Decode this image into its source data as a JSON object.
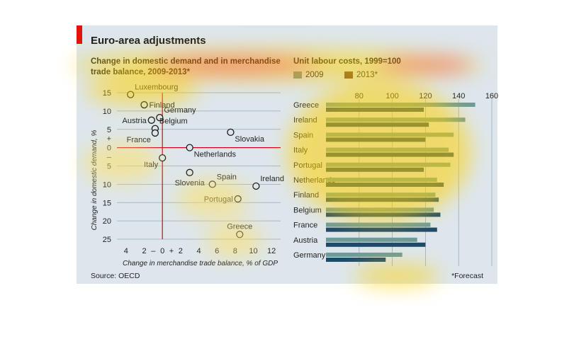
{
  "figure": {
    "title": "Euro-area adjustments",
    "source": "Source: OECD",
    "footnote": "*Forecast"
  },
  "chart_data": [
    {
      "type": "scatter",
      "title": "Change in domestic demand and in merchandise trade balance, 2009-2013*",
      "xlabel": "Change in merchandise trade balance, % of GDP",
      "ylabel": "Change in domestic demand, %",
      "xlim": [
        -5,
        13
      ],
      "ylim": [
        -25,
        15
      ],
      "xticks": [
        {
          "v": -4,
          "label": "4"
        },
        {
          "v": -2,
          "label": "2"
        },
        {
          "v": -1,
          "label": "–"
        },
        {
          "v": 0,
          "label": "0"
        },
        {
          "v": 1,
          "label": "+"
        },
        {
          "v": 2,
          "label": "2"
        },
        {
          "v": 4,
          "label": "4"
        },
        {
          "v": 6,
          "label": "6"
        },
        {
          "v": 8,
          "label": "8"
        },
        {
          "v": 10,
          "label": "10"
        },
        {
          "v": 12,
          "label": "12"
        }
      ],
      "yticks": [
        {
          "v": 15,
          "label": "15"
        },
        {
          "v": 10,
          "label": "10"
        },
        {
          "v": 5,
          "label": "5"
        },
        {
          "v": 2.5,
          "label": "+"
        },
        {
          "v": 0,
          "label": "0"
        },
        {
          "v": -2.5,
          "label": "–"
        },
        {
          "v": -5,
          "label": "5"
        },
        {
          "v": -10,
          "label": "10"
        },
        {
          "v": -15,
          "label": "15"
        },
        {
          "v": -20,
          "label": "20"
        },
        {
          "v": -25,
          "label": "25"
        }
      ],
      "grid": true,
      "points": [
        {
          "name": "Luxembourg",
          "x": -3.5,
          "y": 14.5,
          "pos": "ne"
        },
        {
          "name": "Finland",
          "x": -2.0,
          "y": 11.7,
          "pos": "e"
        },
        {
          "name": "Austria",
          "x": -1.2,
          "y": 7.5,
          "pos": "w"
        },
        {
          "name": "Germany",
          "x": -0.3,
          "y": 8.2,
          "pos": "ne"
        },
        {
          "name": "Belgium",
          "x": -0.8,
          "y": 5.2,
          "pos": "ne"
        },
        {
          "name": "France",
          "x": -0.8,
          "y": 4.0,
          "pos": "sw"
        },
        {
          "name": "Slovakia",
          "x": 7.5,
          "y": 4.2,
          "pos": "se"
        },
        {
          "name": "Netherlands",
          "x": 3.0,
          "y": 0.0,
          "pos": "se"
        },
        {
          "name": "Italy",
          "x": 0.0,
          "y": -2.8,
          "pos": "sw"
        },
        {
          "name": "Slovenia",
          "x": 3.0,
          "y": -6.8,
          "pos": "s"
        },
        {
          "name": "Spain",
          "x": 5.5,
          "y": -10.0,
          "pos": "ne"
        },
        {
          "name": "Ireland",
          "x": 10.3,
          "y": -10.5,
          "pos": "ne"
        },
        {
          "name": "Portugal",
          "x": 8.3,
          "y": -14.0,
          "pos": "w"
        },
        {
          "name": "Greece",
          "x": 8.5,
          "y": -23.7,
          "pos": "n"
        }
      ]
    },
    {
      "type": "bar",
      "orientation": "horizontal",
      "title": "Unit labour costs, 1999=100",
      "xlim": [
        60,
        160
      ],
      "xticks": [
        80,
        100,
        120,
        140,
        160
      ],
      "categories": [
        "Greece",
        "Ireland",
        "Spain",
        "Italy",
        "Portugal",
        "Netherlands",
        "Finland",
        "Belgium",
        "France",
        "Austria",
        "Germany"
      ],
      "series": [
        {
          "name": "2009",
          "color": "#6e9a99",
          "values": [
            150,
            144,
            137,
            134,
            135,
            127,
            126,
            125,
            123,
            115,
            106
          ]
        },
        {
          "name": "2013*",
          "color": "#1e4a6a",
          "values": [
            119,
            122,
            120,
            137,
            119,
            131,
            128,
            129,
            127,
            120,
            96
          ]
        }
      ]
    }
  ]
}
